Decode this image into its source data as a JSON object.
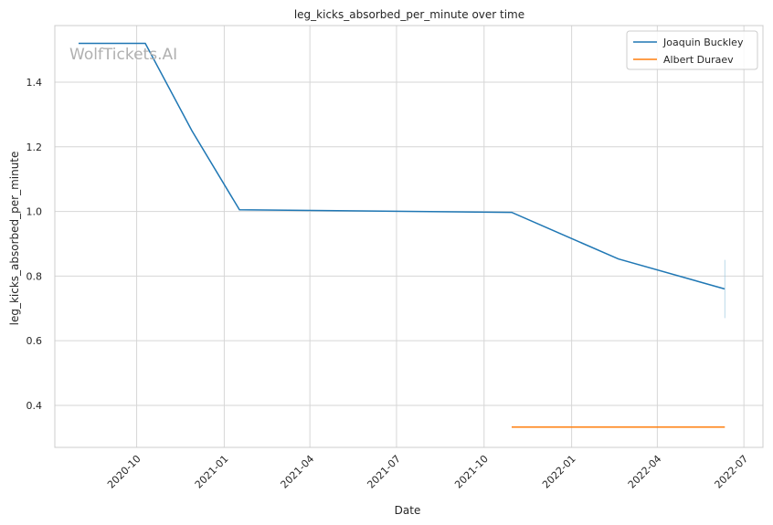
{
  "chart_data": {
    "type": "line",
    "title": "leg_kicks_absorbed_per_minute over time",
    "xlabel": "Date",
    "ylabel": "leg_kicks_absorbed_per_minute",
    "watermark": "WolfTickets.AI",
    "x_ticks": [
      "2020-10",
      "2021-01",
      "2021-04",
      "2021-07",
      "2021-10",
      "2022-01",
      "2022-04",
      "2022-07"
    ],
    "y_ticks": [
      "0.4",
      "0.6",
      "0.8",
      "1.0",
      "1.2",
      "1.4"
    ],
    "xlim": [
      "2020-07-07",
      "2022-07-21"
    ],
    "ylim": [
      0.27,
      1.575
    ],
    "grid": true,
    "legend_position": "top-right",
    "series": [
      {
        "name": "Joaquin Buckley",
        "color": "#1f77b4",
        "x": [
          "2020-08-01",
          "2020-10-10",
          "2020-11-28",
          "2021-01-17",
          "2021-10-30",
          "2022-02-19",
          "2022-06-11"
        ],
        "y": [
          1.52,
          1.52,
          1.25,
          1.005,
          0.997,
          0.853,
          0.76
        ]
      },
      {
        "name": "Albert Duraev",
        "color": "#ff7f0e",
        "x": [
          "2021-10-30",
          "2022-06-11"
        ],
        "y": [
          0.333,
          0.333
        ]
      }
    ]
  }
}
